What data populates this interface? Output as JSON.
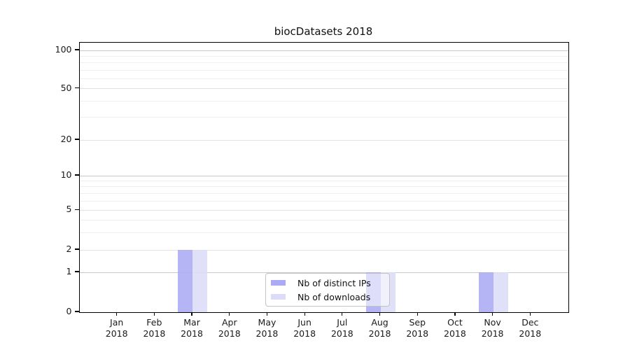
{
  "title": "biocDatasets 2018",
  "chart_data": {
    "type": "bar",
    "title": "biocDatasets 2018",
    "categories": [
      "Jan",
      "Feb",
      "Mar",
      "Apr",
      "May",
      "Jun",
      "Jul",
      "Aug",
      "Sep",
      "Oct",
      "Nov",
      "Dec"
    ],
    "category_year": "2018",
    "series": [
      {
        "name": "Nb of distinct IPs",
        "color": "#ababf5",
        "values": [
          0,
          0,
          2,
          0,
          0,
          0,
          0,
          1,
          0,
          0,
          1,
          0
        ]
      },
      {
        "name": "Nb of downloads",
        "color": "#dcdcf8",
        "values": [
          0,
          0,
          2,
          0,
          0,
          0,
          0,
          1,
          0,
          0,
          1,
          0
        ]
      }
    ],
    "xlabel": "",
    "ylabel": "",
    "yticks": [
      0,
      1,
      2,
      5,
      10,
      20,
      50,
      100
    ],
    "ylim": [
      0,
      120
    ],
    "scale": "symlog",
    "grid": true,
    "legend_position": "lower center",
    "gridlines": {
      "decade": [
        1,
        10,
        100
      ],
      "labeled": [
        2,
        5,
        20,
        50
      ],
      "minor": [
        3,
        4,
        6,
        7,
        8,
        9,
        30,
        40,
        60,
        70,
        80,
        90
      ]
    },
    "ytick_fractions": {
      "0": 0.0,
      "1": 0.148,
      "2": 0.231,
      "5": 0.378,
      "10": 0.5065,
      "20": 0.639,
      "50": 0.829,
      "100": 0.9714
    }
  }
}
